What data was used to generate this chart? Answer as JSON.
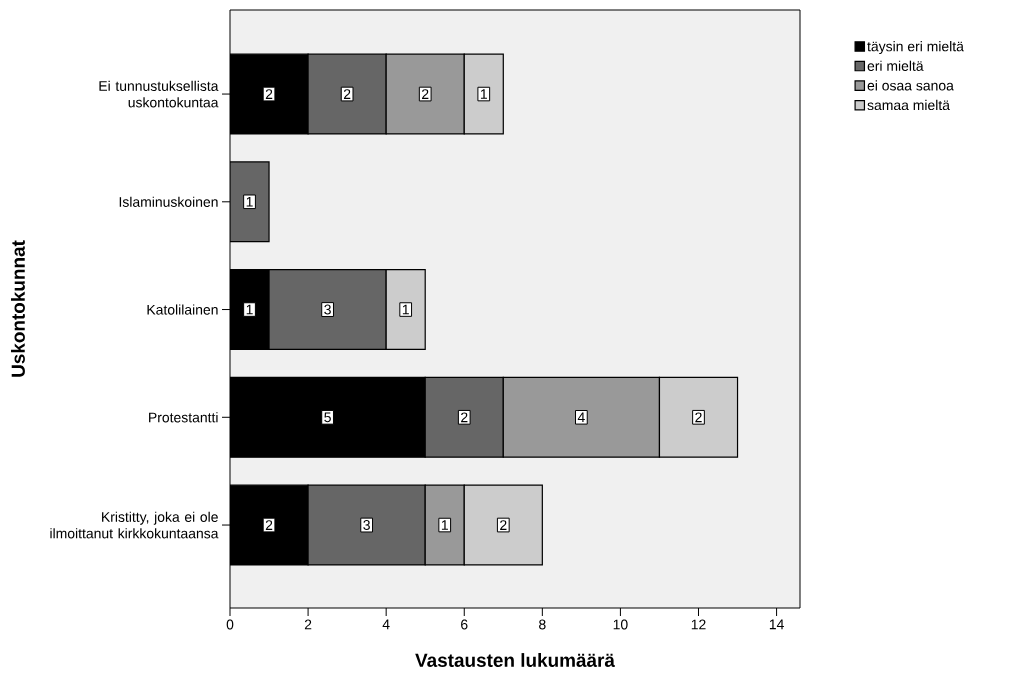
{
  "chart_data": {
    "type": "bar",
    "orientation": "horizontal",
    "stacked": true,
    "categories": [
      "Ei tunnustuksellista uskontokuntaa",
      "Islaminuskoinen",
      "Katolilainen",
      "Protestantti",
      "Kristitty, joka ei ole ilmoittanut kirkkokuntaansa"
    ],
    "series": [
      {
        "name": "täysin eri mieltä",
        "color": "#000000",
        "values": [
          2,
          null,
          1,
          5,
          2
        ]
      },
      {
        "name": "eri mieltä",
        "color": "#666666",
        "values": [
          2,
          1,
          3,
          2,
          3
        ]
      },
      {
        "name": "ei osaa sanoa",
        "color": "#999999",
        "values": [
          2,
          null,
          null,
          4,
          1
        ]
      },
      {
        "name": "samaa mieltä",
        "color": "#cccccc",
        "values": [
          1,
          null,
          1,
          2,
          2
        ]
      }
    ],
    "xlabel": "Vastausten lukumäärä",
    "ylabel": "Uskontokunnat",
    "xlim": [
      0,
      14.6
    ],
    "xticks": [
      0,
      2,
      4,
      6,
      8,
      10,
      12,
      14
    ],
    "data_labels": true,
    "legend": "top right",
    "grid": false
  }
}
